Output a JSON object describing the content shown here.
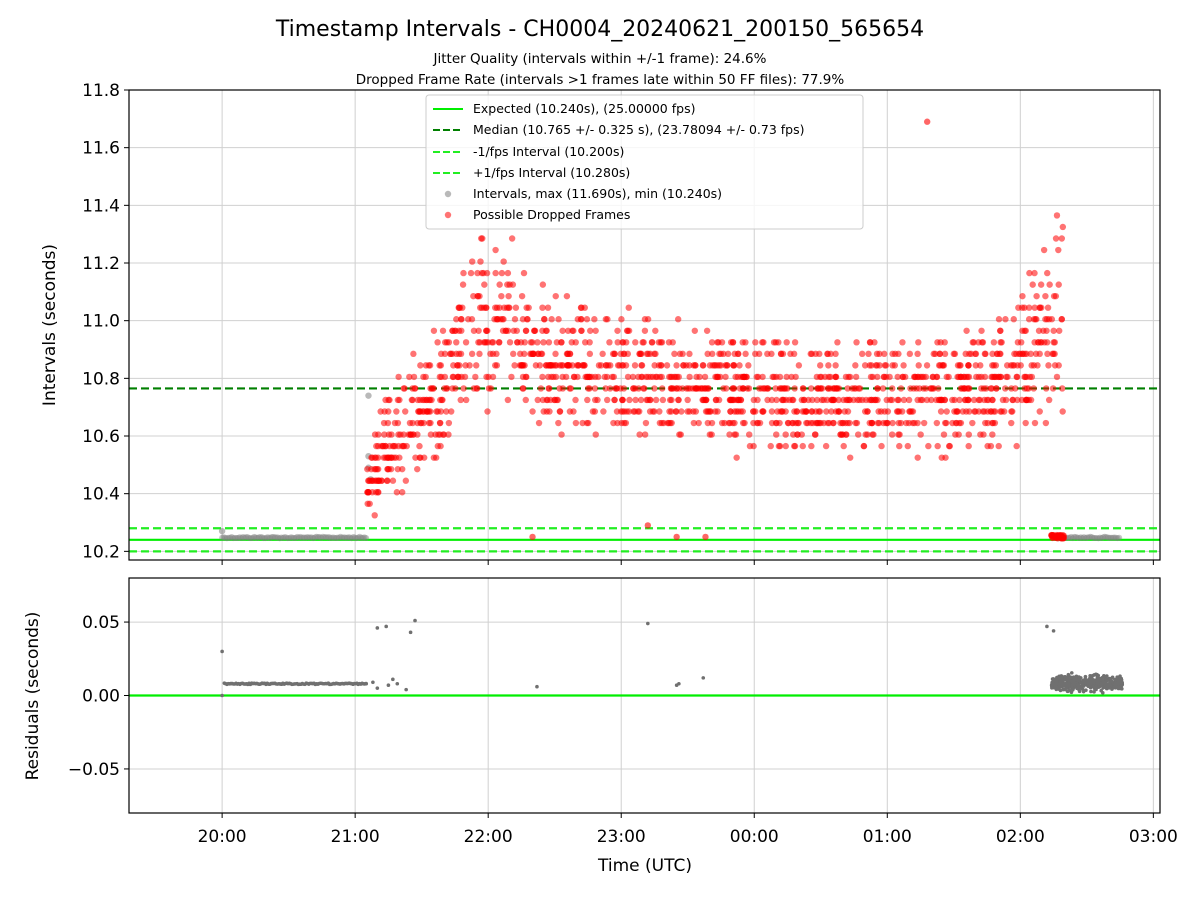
{
  "title": "Timestamp Intervals - CH0004_20240621_200150_565654",
  "subtitle_1": "Jitter Quality (intervals within +/-1 frame): 24.6%",
  "subtitle_2": "Dropped Frame Rate (intervals >1 frames late within 50 FF files): 77.9%",
  "colors": {
    "expected": "#00ee00",
    "median": "#007f00",
    "fps_band": "#22ee22",
    "intervals": "#808080",
    "dropped": "#ff0000",
    "residuals": "#707070",
    "grid": "#d0d0d0"
  },
  "chart_data": [
    {
      "type": "scatter",
      "ylabel": "Intervals (seconds)",
      "xlabel": "",
      "ylim": [
        10.17,
        11.8
      ],
      "xlim_hours_from_20h": [
        -0.7,
        7.05
      ],
      "yticks": [
        "10.2",
        "10.4",
        "10.6",
        "10.8",
        "11.0",
        "11.2",
        "11.4",
        "11.6",
        "11.8"
      ],
      "grid": true,
      "legend_position": "upper center",
      "hlines": [
        {
          "name": "Expected (10.240s), (25.00000 fps)",
          "y": 10.24,
          "style": "solid",
          "color": "#00ee00"
        },
        {
          "name": "Median (10.765 +/- 0.325 s), (23.78094 +/- 0.73 fps)",
          "y": 10.765,
          "style": "dashed",
          "color": "#007f00"
        },
        {
          "name": "-1/fps Interval (10.200s)",
          "y": 10.2,
          "style": "dashed",
          "color": "#22ee22"
        },
        {
          "name": "+1/fps Interval (10.280s)",
          "y": 10.28,
          "style": "dashed",
          "color": "#22ee22"
        }
      ],
      "series": [
        {
          "name": "Intervals, max (11.690s), min (10.240s)",
          "color": "#808080",
          "segments": [
            {
              "x_start": "20:00",
              "x_end": "21:05",
              "y": 10.248
            },
            {
              "x_start": "02:15",
              "x_end": "02:45",
              "y": 10.248
            }
          ],
          "points": [
            [
              "20:00",
              10.27
            ],
            [
              "21:06",
              10.74
            ],
            [
              "21:06",
              10.53
            ],
            [
              "21:06",
              10.49
            ],
            [
              "21:07",
              10.45
            ]
          ]
        },
        {
          "name": "Possible Dropped Frames",
          "color": "#ff0000",
          "x_range": [
            "21:05",
            "02:20"
          ],
          "y_range": [
            10.245,
            11.69
          ],
          "notable_points": [
            [
              "01:18",
              11.69
            ],
            [
              "22:20",
              10.25
            ],
            [
              "23:12",
              10.29
            ],
            [
              "23:25",
              10.25
            ],
            [
              "23:38",
              10.25
            ]
          ]
        }
      ]
    },
    {
      "type": "scatter",
      "xlabel": "Time (UTC)",
      "ylabel": "Residuals (seconds)",
      "ylim": [
        -0.08,
        0.08
      ],
      "yticks": [
        "−0.05",
        "0.00",
        "0.05"
      ],
      "xticks": [
        "20:00",
        "21:00",
        "22:00",
        "23:00",
        "00:00",
        "01:00",
        "02:00",
        "03:00"
      ],
      "grid": true,
      "hlines": [
        {
          "y": 0.0,
          "style": "solid",
          "color": "#00ee00"
        }
      ],
      "series": [
        {
          "name": "Residuals",
          "color": "#707070",
          "segments": [
            {
              "x_start": "20:01",
              "x_end": "21:05",
              "y": 0.008
            }
          ],
          "points": [
            [
              "20:00",
              0.03
            ],
            [
              "20:00",
              0.0
            ],
            [
              "21:05",
              0.008
            ],
            [
              "21:08",
              0.009
            ],
            [
              "21:10",
              0.005
            ],
            [
              "21:10",
              0.046
            ],
            [
              "21:14",
              0.047
            ],
            [
              "21:15",
              0.007
            ],
            [
              "21:17",
              0.011
            ],
            [
              "21:19",
              0.008
            ],
            [
              "21:23",
              0.004
            ],
            [
              "21:25",
              0.043
            ],
            [
              "21:27",
              0.051
            ],
            [
              "22:22",
              0.006
            ],
            [
              "23:12",
              0.049
            ],
            [
              "23:25",
              0.007
            ],
            [
              "23:26",
              0.008
            ],
            [
              "23:37",
              0.012
            ],
            [
              "02:12",
              0.047
            ],
            [
              "02:15",
              0.044
            ]
          ],
          "cloud": {
            "x_range": [
              "02:14",
              "02:46"
            ],
            "y_range": [
              0.001,
              0.016
            ]
          }
        }
      ]
    }
  ]
}
